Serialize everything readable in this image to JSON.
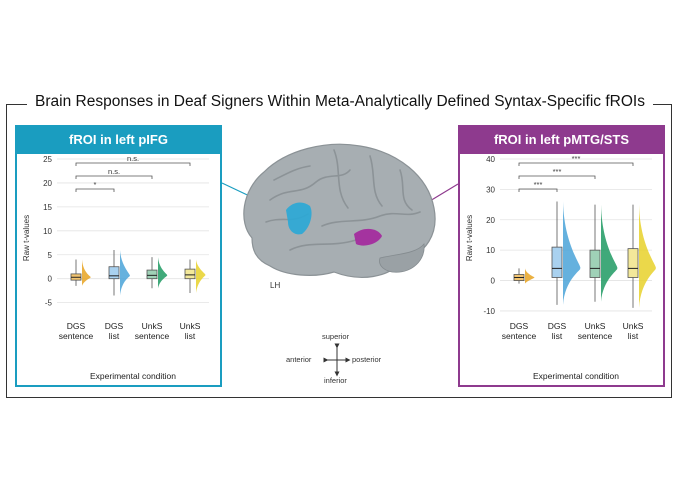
{
  "title": "Brain Responses in Deaf Signers Within Meta-Analytically Defined Syntax-Specific fROIs",
  "hemisphere_label": "LH",
  "orientation": {
    "superior": "superior",
    "inferior": "inferior",
    "anterior": "anterior",
    "posterior": "posterior"
  },
  "colors": {
    "ifg": "#1a9dc0",
    "mtg": "#8e3a8e",
    "brain": "#a7aeb2",
    "region_ifg": "#2aa8d6",
    "region_mtg": "#a32c9e"
  },
  "chart_data": [
    {
      "type": "box",
      "title": "fROI in left pIFG",
      "xlabel": "Experimental condition",
      "ylabel": "Raw t-values",
      "ylim": [
        -8,
        25
      ],
      "yticks": [
        -5,
        0,
        5,
        10,
        15,
        20,
        25
      ],
      "grid": true,
      "categories": [
        "DGS\nsentence",
        "DGS\nlist",
        "UnkS\nsentence",
        "UnkS\nlist"
      ],
      "series": [
        {
          "color": "#e7a321",
          "box_color": "#f2c470",
          "min": -1.5,
          "q1": -0.3,
          "median": 0.3,
          "q3": 1.0,
          "max": 4
        },
        {
          "color": "#4aa3d8",
          "box_color": "#a9d1ef",
          "min": -3.5,
          "q1": 0.0,
          "median": 0.6,
          "q3": 2.5,
          "max": 6
        },
        {
          "color": "#1f9a63",
          "box_color": "#9fd1b7",
          "min": -2,
          "q1": 0.0,
          "median": 0.7,
          "q3": 1.8,
          "max": 4.5
        },
        {
          "color": "#e8d12a",
          "box_color": "#f3e89a",
          "min": -3,
          "q1": 0.0,
          "median": 0.8,
          "q3": 2.0,
          "max": 4
        }
      ],
      "comparisons": [
        {
          "from": 0,
          "to": 1,
          "label": "*"
        },
        {
          "from": 0,
          "to": 2,
          "label": "n.s."
        },
        {
          "from": 0,
          "to": 3,
          "label": "n.s."
        }
      ]
    },
    {
      "type": "box",
      "title": "fROI in left pMTG/STS",
      "xlabel": "Experimental condition",
      "ylabel": "Raw t-values",
      "ylim": [
        -12,
        40
      ],
      "yticks": [
        -10,
        0,
        10,
        20,
        30,
        40
      ],
      "grid": true,
      "categories": [
        "DGS\nsentence",
        "DGS\nlist",
        "UnkS\nsentence",
        "UnkS\nlist"
      ],
      "series": [
        {
          "color": "#e7a321",
          "box_color": "#f2c470",
          "min": -1,
          "q1": 0.0,
          "median": 1.0,
          "q3": 2.0,
          "max": 4
        },
        {
          "color": "#4aa3d8",
          "box_color": "#a9d1ef",
          "min": -8,
          "q1": 1.0,
          "median": 4.0,
          "q3": 11.0,
          "max": 26
        },
        {
          "color": "#1f9a63",
          "box_color": "#9fd1b7",
          "min": -7,
          "q1": 1.0,
          "median": 4.0,
          "q3": 10.0,
          "max": 25
        },
        {
          "color": "#e8d12a",
          "box_color": "#f3e89a",
          "min": -9,
          "q1": 1.0,
          "median": 4.0,
          "q3": 10.5,
          "max": 25
        }
      ],
      "comparisons": [
        {
          "from": 0,
          "to": 1,
          "label": "***"
        },
        {
          "from": 0,
          "to": 2,
          "label": "***"
        },
        {
          "from": 0,
          "to": 3,
          "label": "***"
        }
      ]
    }
  ]
}
